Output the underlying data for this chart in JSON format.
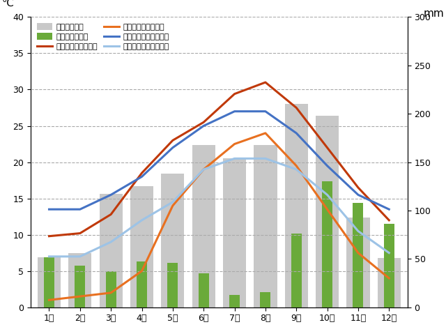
{
  "months": [
    "1月",
    "2月",
    "3月",
    "4月",
    "5月",
    "6月",
    "7月",
    "8月",
    "9月",
    "10月",
    "11月",
    "12月"
  ],
  "tokyo_precip": [
    52,
    56,
    117,
    125,
    138,
    168,
    154,
    168,
    210,
    198,
    93,
    51
  ],
  "nice_precip": [
    52,
    43,
    37,
    47,
    46,
    35,
    13,
    16,
    76,
    130,
    108,
    86
  ],
  "tokyo_max_temp": [
    9.8,
    10.2,
    12.8,
    18.5,
    23.0,
    25.5,
    29.4,
    31.0,
    27.5,
    22.0,
    16.5,
    12.0
  ],
  "tokyo_min_temp": [
    1.0,
    1.5,
    2.0,
    5.0,
    14.0,
    19.0,
    22.5,
    24.0,
    19.5,
    13.5,
    7.5,
    4.0
  ],
  "nice_max_temp": [
    13.5,
    13.5,
    15.5,
    18.0,
    22.0,
    25.0,
    27.0,
    27.0,
    24.0,
    19.5,
    15.5,
    13.5
  ],
  "nice_min_temp": [
    7.0,
    7.0,
    9.0,
    12.0,
    14.5,
    19.0,
    20.5,
    20.5,
    19.0,
    15.5,
    10.5,
    7.5
  ],
  "tokyo_precip_color": "#c8c8c8",
  "nice_precip_color": "#6aaa3a",
  "tokyo_max_color": "#c0390a",
  "tokyo_min_color": "#e87020",
  "nice_max_color": "#4472c4",
  "nice_min_color": "#9dc3e6",
  "temp_ylim": [
    0,
    40
  ],
  "precip_ylim": [
    0,
    300
  ],
  "temp_yticks": [
    0,
    5,
    10,
    15,
    20,
    25,
    30,
    35,
    40
  ],
  "precip_yticks": [
    0,
    50,
    100,
    150,
    200,
    250,
    300
  ],
  "ylabel_left": "℃",
  "ylabel_right": "mm",
  "legend_labels": [
    "東京の降水量",
    "ニースの降水量",
    "東京の平均最高気温",
    "東京の平均最低気温",
    "ニースの平均最高気温",
    "ニースの平均最低気温"
  ],
  "background_color": "#ffffff",
  "linewidth": 2.2,
  "grid_color": "#aaaaaa",
  "grid_linestyle": "--",
  "grid_linewidth": 0.8
}
